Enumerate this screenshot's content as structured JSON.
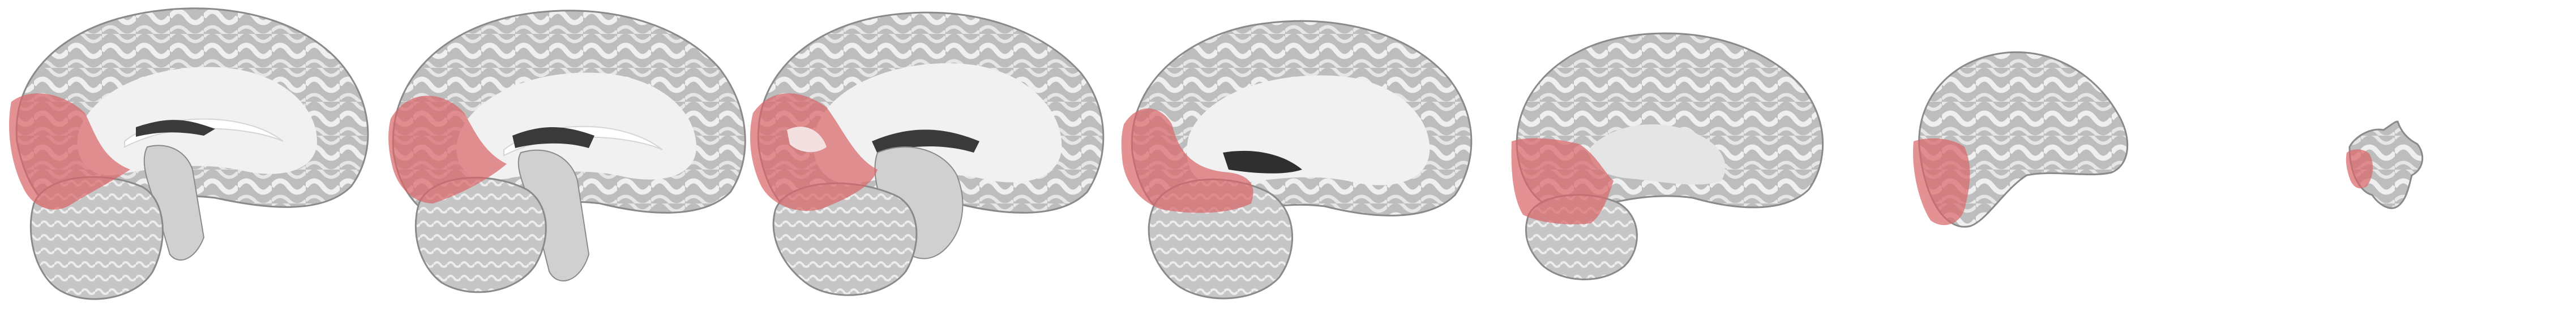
{
  "figure": {
    "background": "#ffffff",
    "overlay_color": "#d9666b",
    "overlay_opacity": 0.72,
    "tissue_colors": {
      "white_matter": "#f1f1f1",
      "gray_matter": "#a9a9a9",
      "outline": "#8a8a8a",
      "ventricle": "#3a3a3a",
      "brainstem": "#d0d0d0",
      "cerebellum": "#c4c4c4"
    }
  },
  "slices": [
    {
      "name": "sagittal-slice-1",
      "overlay_fraction": 0.22,
      "has_ventricle": true,
      "has_brainstem": true,
      "has_cerebellum": true
    },
    {
      "name": "sagittal-slice-2",
      "overlay_fraction": 0.2,
      "has_ventricle": true,
      "has_brainstem": true,
      "has_cerebellum": true
    },
    {
      "name": "sagittal-slice-3",
      "overlay_fraction": 0.24,
      "has_ventricle": true,
      "has_brainstem": true,
      "has_cerebellum": true
    },
    {
      "name": "sagittal-slice-4",
      "overlay_fraction": 0.26,
      "has_ventricle": false,
      "has_brainstem": false,
      "has_cerebellum": true
    },
    {
      "name": "sagittal-slice-5",
      "overlay_fraction": 0.24,
      "has_ventricle": false,
      "has_brainstem": false,
      "has_cerebellum": true
    },
    {
      "name": "sagittal-slice-6",
      "overlay_fraction": 0.22,
      "has_ventricle": false,
      "has_brainstem": false,
      "has_cerebellum": false
    },
    {
      "name": "sagittal-slice-7",
      "overlay_fraction": 0.3,
      "has_ventricle": false,
      "has_brainstem": false,
      "has_cerebellum": false
    }
  ]
}
